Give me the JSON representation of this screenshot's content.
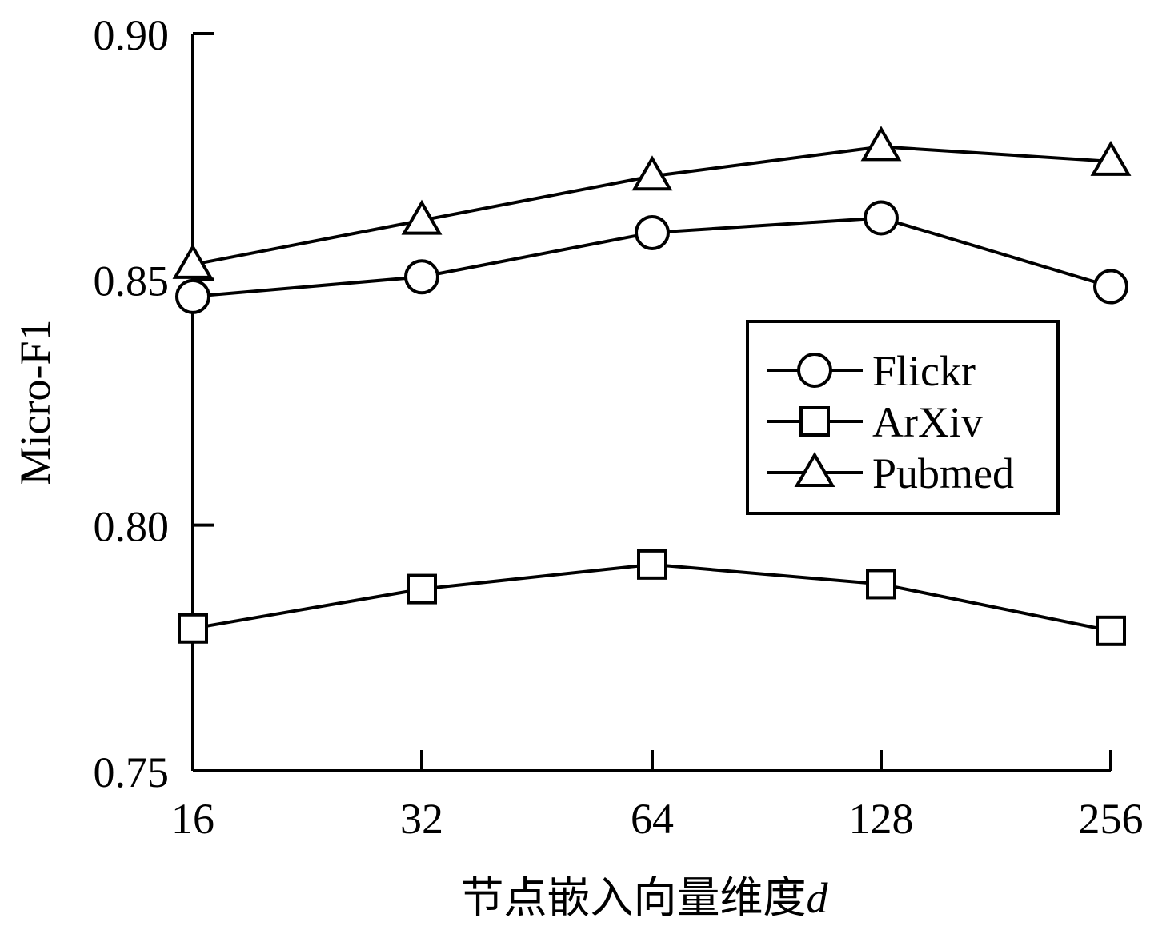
{
  "chart_data": {
    "type": "line",
    "x": [
      "16",
      "32",
      "64",
      "128",
      "256"
    ],
    "xlabel": "节点嵌入向量维度",
    "xlabel_var": "d",
    "ylabel": "Micro-F1",
    "ylim": [
      0.75,
      0.9
    ],
    "yticks": [
      "0.75",
      "0.80",
      "0.85",
      "0.90"
    ],
    "grid": false,
    "legend_position": "right-middle",
    "series": [
      {
        "name": "Flickr",
        "marker": "circle",
        "values": [
          0.8465,
          0.8505,
          0.8595,
          0.8625,
          0.8485
        ]
      },
      {
        "name": "ArXiv",
        "marker": "square",
        "values": [
          0.779,
          0.787,
          0.792,
          0.788,
          0.7785
        ]
      },
      {
        "name": "Pubmed",
        "marker": "triangle",
        "values": [
          0.853,
          0.862,
          0.871,
          0.877,
          0.874
        ]
      }
    ]
  }
}
